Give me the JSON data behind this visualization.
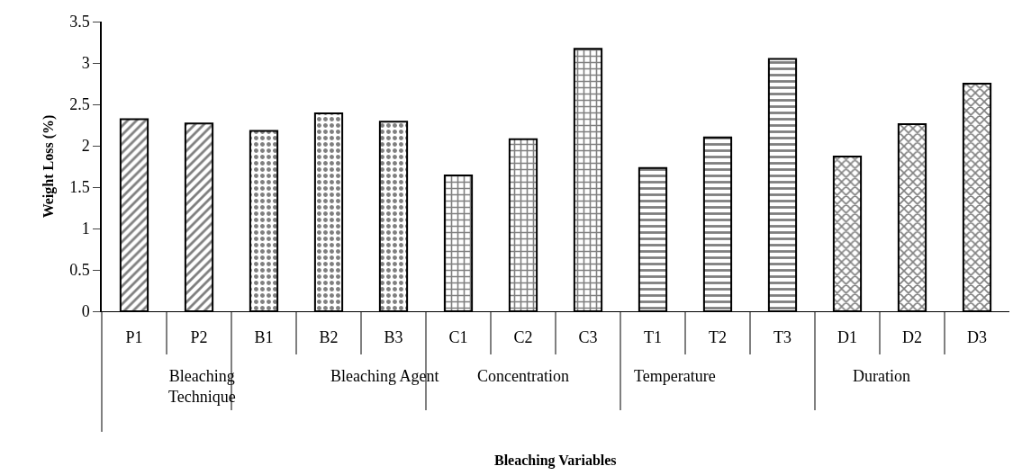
{
  "chart_data": {
    "type": "bar",
    "ylabel": "Weight Loss (%)",
    "categories": [
      "P1",
      "P2",
      "B1",
      "B2",
      "B3",
      "C1",
      "C2",
      "C3",
      "T1",
      "T2",
      "T3",
      "D1",
      "D2",
      "D3"
    ],
    "values": [
      2.32,
      2.27,
      2.18,
      2.39,
      2.29,
      1.64,
      2.08,
      3.17,
      1.73,
      2.1,
      3.05,
      1.87,
      2.26,
      2.75
    ],
    "color": "#000000",
    "ylim": [
      0,
      3.5
    ],
    "yticks": [
      0,
      0.5,
      1,
      1.5,
      2,
      2.5,
      3,
      3.5
    ],
    "annotations": [
      "Bleaching\nTechnique",
      "Bleaching Agent",
      "Concentration",
      "Temperature",
      "Duration",
      "Bleaching Variables"
    ]
  }
}
